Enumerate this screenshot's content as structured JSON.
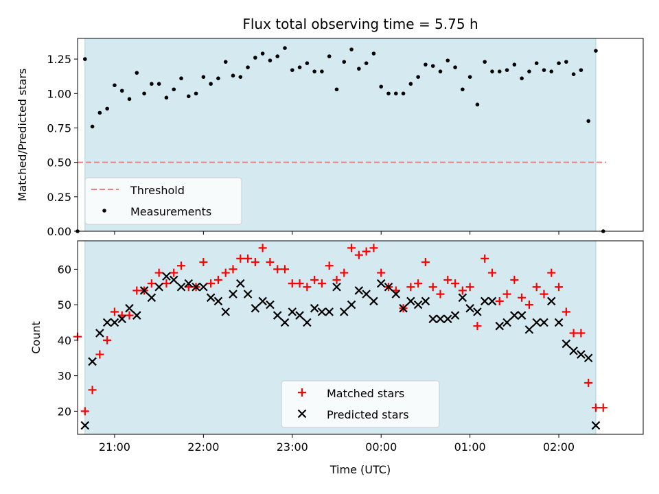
{
  "chart_data": [
    {
      "type": "scatter",
      "title": "Flux total observing time = 5.75 h",
      "xlabel": "",
      "ylabel": "Matched/Predicted stars",
      "x_axis": "time (UTC)",
      "x_range": [
        "20:35",
        "02:57"
      ],
      "x_tick_labels": [
        "21:00",
        "22:00",
        "23:00",
        "00:00",
        "01:00",
        "02:00"
      ],
      "ylim": [
        0,
        1.4
      ],
      "y_ticks": [
        "0.00",
        "0.25",
        "0.50",
        "0.75",
        "1.00",
        "1.25"
      ],
      "shaded_interval": {
        "start": "20:40",
        "end": "02:25",
        "color": "#d4eaf0"
      },
      "grid": false,
      "legend": {
        "position": "lower-left",
        "entries": [
          "Threshold",
          "Measurements"
        ]
      },
      "series": [
        {
          "name": "Threshold",
          "style": "dashed-line",
          "color": "#f08080",
          "points": [
            [
              "20:35",
              0.5
            ],
            [
              "02:32",
              0.5
            ]
          ]
        },
        {
          "name": "Measurements",
          "style": "dot",
          "color": "#000000",
          "points": [
            [
              "20:35",
              0.0
            ],
            [
              "20:40",
              1.25
            ],
            [
              "20:45",
              0.76
            ],
            [
              "20:50",
              0.86
            ],
            [
              "20:55",
              0.89
            ],
            [
              "21:00",
              1.06
            ],
            [
              "21:05",
              1.02
            ],
            [
              "21:10",
              0.96
            ],
            [
              "21:15",
              1.15
            ],
            [
              "21:20",
              1.0
            ],
            [
              "21:25",
              1.07
            ],
            [
              "21:30",
              1.07
            ],
            [
              "21:35",
              0.97
            ],
            [
              "21:40",
              1.03
            ],
            [
              "21:45",
              1.11
            ],
            [
              "21:50",
              0.98
            ],
            [
              "21:55",
              1.0
            ],
            [
              "22:00",
              1.12
            ],
            [
              "22:05",
              1.07
            ],
            [
              "22:10",
              1.11
            ],
            [
              "22:15",
              1.23
            ],
            [
              "22:20",
              1.13
            ],
            [
              "22:25",
              1.12
            ],
            [
              "22:30",
              1.19
            ],
            [
              "22:35",
              1.26
            ],
            [
              "22:40",
              1.29
            ],
            [
              "22:45",
              1.24
            ],
            [
              "22:50",
              1.27
            ],
            [
              "22:55",
              1.33
            ],
            [
              "23:00",
              1.17
            ],
            [
              "23:05",
              1.19
            ],
            [
              "23:10",
              1.22
            ],
            [
              "23:15",
              1.16
            ],
            [
              "23:20",
              1.16
            ],
            [
              "23:25",
              1.27
            ],
            [
              "23:30",
              1.03
            ],
            [
              "23:35",
              1.23
            ],
            [
              "23:40",
              1.32
            ],
            [
              "23:45",
              1.18
            ],
            [
              "23:50",
              1.22
            ],
            [
              "23:55",
              1.29
            ],
            [
              "00:00",
              1.05
            ],
            [
              "00:05",
              1.0
            ],
            [
              "00:10",
              1.0
            ],
            [
              "00:15",
              1.0
            ],
            [
              "00:20",
              1.07
            ],
            [
              "00:25",
              1.12
            ],
            [
              "00:30",
              1.21
            ],
            [
              "00:35",
              1.2
            ],
            [
              "00:40",
              1.16
            ],
            [
              "00:45",
              1.24
            ],
            [
              "00:50",
              1.19
            ],
            [
              "00:55",
              1.03
            ],
            [
              "01:00",
              1.12
            ],
            [
              "01:05",
              0.92
            ],
            [
              "01:10",
              1.23
            ],
            [
              "01:15",
              1.16
            ],
            [
              "01:20",
              1.16
            ],
            [
              "01:25",
              1.17
            ],
            [
              "01:30",
              1.21
            ],
            [
              "01:35",
              1.11
            ],
            [
              "01:40",
              1.16
            ],
            [
              "01:45",
              1.22
            ],
            [
              "01:50",
              1.17
            ],
            [
              "01:55",
              1.16
            ],
            [
              "02:00",
              1.22
            ],
            [
              "02:05",
              1.23
            ],
            [
              "02:10",
              1.14
            ],
            [
              "02:15",
              1.17
            ],
            [
              "02:20",
              0.8
            ],
            [
              "02:25",
              1.31
            ],
            [
              "02:30",
              0.0
            ]
          ]
        }
      ]
    },
    {
      "type": "scatter",
      "title": "",
      "xlabel": "Time (UTC)",
      "ylabel": "Count",
      "x_axis": "time (UTC)",
      "x_range": [
        "20:35",
        "02:57"
      ],
      "x_tick_labels": [
        "21:00",
        "22:00",
        "23:00",
        "00:00",
        "01:00",
        "02:00"
      ],
      "ylim": [
        13.5,
        68
      ],
      "y_ticks": [
        "20",
        "30",
        "40",
        "50",
        "60"
      ],
      "shaded_interval": {
        "start": "20:40",
        "end": "02:25",
        "color": "#d4eaf0"
      },
      "grid": false,
      "legend": {
        "position": "lower-center",
        "entries": [
          "Matched stars",
          "Predicted stars"
        ]
      },
      "series": [
        {
          "name": "Matched stars",
          "style": "plus",
          "color": "#ff0000",
          "points": [
            [
              "20:35",
              41
            ],
            [
              "20:40",
              20
            ],
            [
              "20:45",
              26
            ],
            [
              "20:50",
              36
            ],
            [
              "20:55",
              40
            ],
            [
              "21:00",
              48
            ],
            [
              "21:05",
              47
            ],
            [
              "21:10",
              47
            ],
            [
              "21:15",
              54
            ],
            [
              "21:20",
              54
            ],
            [
              "21:25",
              56
            ],
            [
              "21:30",
              59
            ],
            [
              "21:35",
              56
            ],
            [
              "21:40",
              59
            ],
            [
              "21:45",
              61
            ],
            [
              "21:50",
              55
            ],
            [
              "21:55",
              55
            ],
            [
              "22:00",
              62
            ],
            [
              "22:05",
              56
            ],
            [
              "22:10",
              57
            ],
            [
              "22:15",
              59
            ],
            [
              "22:20",
              60
            ],
            [
              "22:25",
              63
            ],
            [
              "22:30",
              63
            ],
            [
              "22:35",
              62
            ],
            [
              "22:40",
              66
            ],
            [
              "22:45",
              62
            ],
            [
              "22:50",
              60
            ],
            [
              "22:55",
              60
            ],
            [
              "23:00",
              56
            ],
            [
              "23:05",
              56
            ],
            [
              "23:10",
              55
            ],
            [
              "23:15",
              57
            ],
            [
              "23:20",
              56
            ],
            [
              "23:25",
              61
            ],
            [
              "23:30",
              57
            ],
            [
              "23:35",
              59
            ],
            [
              "23:40",
              66
            ],
            [
              "23:45",
              64
            ],
            [
              "23:50",
              65
            ],
            [
              "23:55",
              66
            ],
            [
              "00:00",
              59
            ],
            [
              "00:05",
              55
            ],
            [
              "00:10",
              54
            ],
            [
              "00:15",
              49
            ],
            [
              "00:20",
              55
            ],
            [
              "00:25",
              56
            ],
            [
              "00:30",
              62
            ],
            [
              "00:35",
              55
            ],
            [
              "00:40",
              53
            ],
            [
              "00:45",
              57
            ],
            [
              "00:50",
              56
            ],
            [
              "00:55",
              54
            ],
            [
              "01:00",
              55
            ],
            [
              "01:05",
              44
            ],
            [
              "01:10",
              63
            ],
            [
              "01:15",
              59
            ],
            [
              "01:20",
              51
            ],
            [
              "01:25",
              53
            ],
            [
              "01:30",
              57
            ],
            [
              "01:35",
              52
            ],
            [
              "01:40",
              50
            ],
            [
              "01:45",
              55
            ],
            [
              "01:50",
              53
            ],
            [
              "01:55",
              59
            ],
            [
              "02:00",
              55
            ],
            [
              "02:05",
              48
            ],
            [
              "02:10",
              42
            ],
            [
              "02:15",
              42
            ],
            [
              "02:20",
              28
            ],
            [
              "02:25",
              21
            ],
            [
              "02:30",
              21
            ]
          ]
        },
        {
          "name": "Predicted stars",
          "style": "x",
          "color": "#000000",
          "points": [
            [
              "20:40",
              16
            ],
            [
              "20:45",
              34
            ],
            [
              "20:50",
              42
            ],
            [
              "20:55",
              45
            ],
            [
              "21:00",
              45
            ],
            [
              "21:05",
              46
            ],
            [
              "21:10",
              49
            ],
            [
              "21:15",
              47
            ],
            [
              "21:20",
              54
            ],
            [
              "21:25",
              52
            ],
            [
              "21:30",
              55
            ],
            [
              "21:35",
              58
            ],
            [
              "21:40",
              57
            ],
            [
              "21:45",
              55
            ],
            [
              "21:50",
              56
            ],
            [
              "21:55",
              55
            ],
            [
              "22:00",
              55
            ],
            [
              "22:05",
              52
            ],
            [
              "22:10",
              51
            ],
            [
              "22:15",
              48
            ],
            [
              "22:20",
              53
            ],
            [
              "22:25",
              56
            ],
            [
              "22:30",
              53
            ],
            [
              "22:35",
              49
            ],
            [
              "22:40",
              51
            ],
            [
              "22:45",
              50
            ],
            [
              "22:50",
              47
            ],
            [
              "22:55",
              45
            ],
            [
              "23:00",
              48
            ],
            [
              "23:05",
              47
            ],
            [
              "23:10",
              45
            ],
            [
              "23:15",
              49
            ],
            [
              "23:20",
              48
            ],
            [
              "23:25",
              48
            ],
            [
              "23:30",
              55
            ],
            [
              "23:35",
              48
            ],
            [
              "23:40",
              50
            ],
            [
              "23:45",
              54
            ],
            [
              "23:50",
              53
            ],
            [
              "23:55",
              51
            ],
            [
              "00:00",
              56
            ],
            [
              "00:05",
              55
            ],
            [
              "00:10",
              53
            ],
            [
              "00:15",
              49
            ],
            [
              "00:20",
              51
            ],
            [
              "00:25",
              50
            ],
            [
              "00:30",
              51
            ],
            [
              "00:35",
              46
            ],
            [
              "00:40",
              46
            ],
            [
              "00:45",
              46
            ],
            [
              "00:50",
              47
            ],
            [
              "00:55",
              52
            ],
            [
              "01:00",
              49
            ],
            [
              "01:05",
              48
            ],
            [
              "01:10",
              51
            ],
            [
              "01:15",
              51
            ],
            [
              "01:20",
              44
            ],
            [
              "01:25",
              45
            ],
            [
              "01:30",
              47
            ],
            [
              "01:35",
              47
            ],
            [
              "01:40",
              43
            ],
            [
              "01:45",
              45
            ],
            [
              "01:50",
              45
            ],
            [
              "01:55",
              51
            ],
            [
              "02:00",
              45
            ],
            [
              "02:05",
              39
            ],
            [
              "02:10",
              37
            ],
            [
              "02:15",
              36
            ],
            [
              "02:20",
              35
            ],
            [
              "02:25",
              16
            ]
          ]
        }
      ]
    }
  ]
}
